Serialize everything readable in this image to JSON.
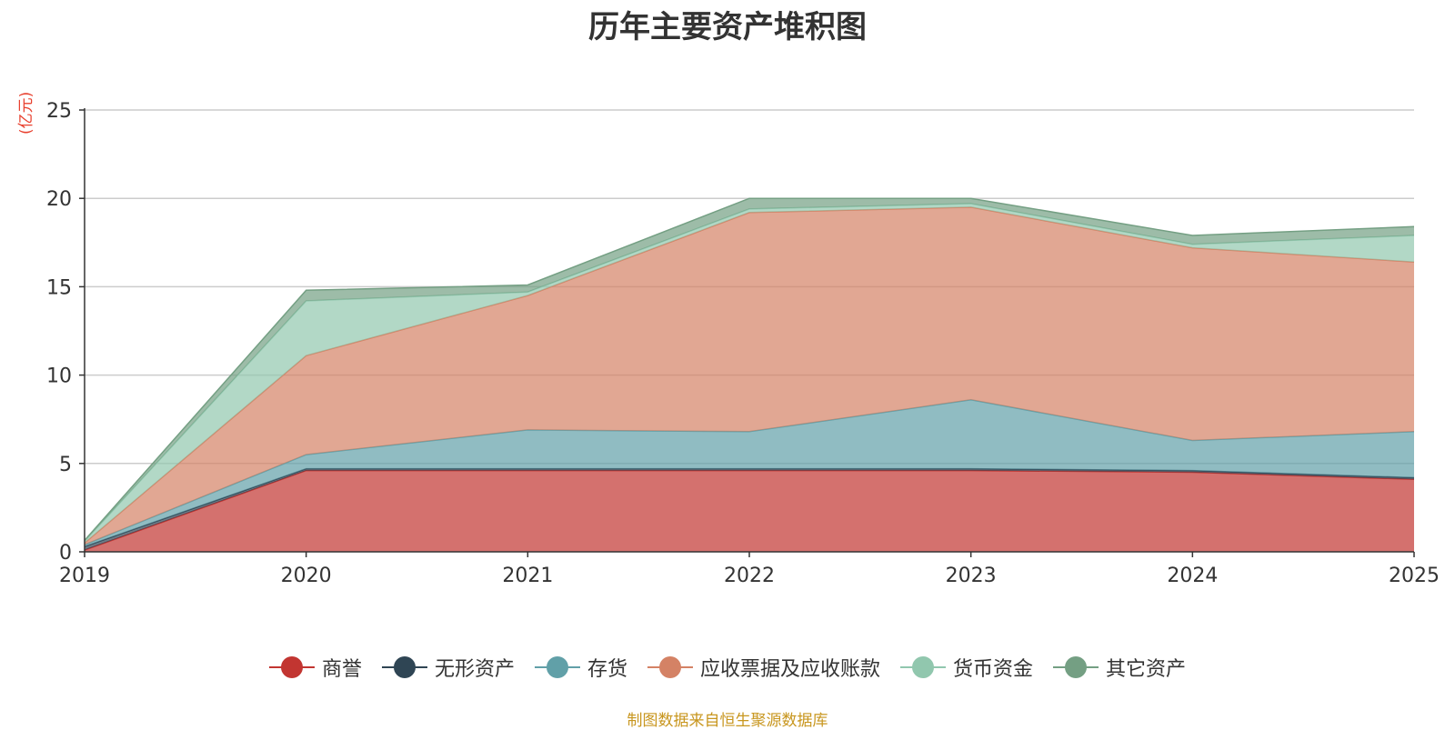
{
  "chart_data": {
    "type": "area",
    "stacked": true,
    "title": "历年主要资产堆积图",
    "unit": "(亿元)",
    "x": [
      "2019",
      "2020",
      "2021",
      "2022",
      "2023",
      "2024",
      "2025"
    ],
    "ylim": [
      0,
      25
    ],
    "yticks": [
      "0",
      "5",
      "10",
      "15",
      "20",
      "25"
    ],
    "series": [
      {
        "name": "商誉",
        "color": "#c23531",
        "values": [
          0.1,
          4.6,
          4.6,
          4.6,
          4.6,
          4.5,
          4.1
        ]
      },
      {
        "name": "无形资产",
        "color": "#2f4554",
        "values": [
          0.2,
          0.1,
          0.1,
          0.1,
          0.1,
          0.1,
          0.1
        ]
      },
      {
        "name": "存货",
        "color": "#61a0a8",
        "values": [
          0.1,
          0.8,
          2.2,
          2.1,
          3.9,
          1.7,
          2.6
        ]
      },
      {
        "name": "应收票据及应收账款",
        "color": "#d48265",
        "values": [
          0.1,
          5.6,
          7.6,
          12.4,
          10.9,
          10.9,
          9.6
        ]
      },
      {
        "name": "货币资金",
        "color": "#91c7ae",
        "values": [
          0.1,
          3.1,
          0.2,
          0.2,
          0.2,
          0.2,
          1.5
        ]
      },
      {
        "name": "其它资产",
        "color": "#749f83",
        "values": [
          0.05,
          0.6,
          0.4,
          0.6,
          0.3,
          0.5,
          0.5
        ]
      }
    ],
    "legend_position": "bottom-center",
    "grid": true
  },
  "source_text": "制图数据来自恒生聚源数据库"
}
